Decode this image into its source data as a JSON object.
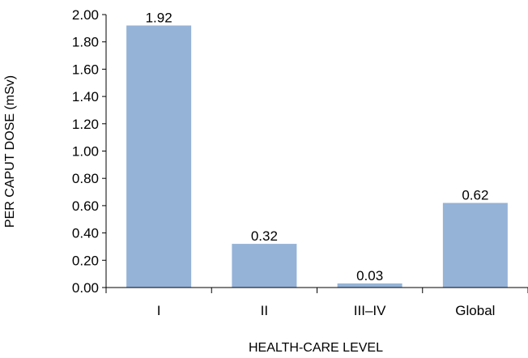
{
  "chart_data": {
    "type": "bar",
    "title": "",
    "xlabel": "HEALTH-CARE LEVEL",
    "ylabel": "PER CAPUT DOSE (mSv)",
    "categories": [
      "I",
      "II",
      "III–IV",
      "Global"
    ],
    "values": [
      1.92,
      0.32,
      0.03,
      0.62
    ],
    "value_labels": [
      "1.92",
      "0.32",
      "0.03",
      "0.62"
    ],
    "ylim": [
      0,
      2.0
    ],
    "yticks": [
      0.0,
      0.2,
      0.4,
      0.6,
      0.8,
      1.0,
      1.2,
      1.4,
      1.6,
      1.8,
      2.0
    ],
    "ytick_labels": [
      "0.00",
      "0.20",
      "0.40",
      "0.60",
      "0.80",
      "1.00",
      "1.20",
      "1.40",
      "1.60",
      "1.80",
      "2.00"
    ],
    "grid": false,
    "legend": "none",
    "colors": {
      "bar": "#95b3d7",
      "axis": "#000000",
      "text": "#000000"
    }
  }
}
